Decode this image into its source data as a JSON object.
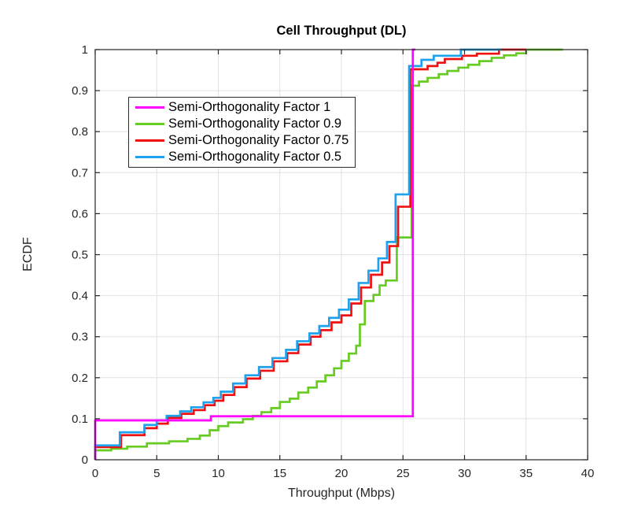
{
  "chart_data": {
    "type": "line",
    "subtype": "ecdf-step",
    "title": "Cell Throughput (DL)",
    "xlabel": "Throughput (Mbps)",
    "ylabel": "ECDF",
    "xlim": [
      0,
      40
    ],
    "ylim": [
      0,
      1
    ],
    "xticks": [
      0,
      5,
      10,
      15,
      20,
      25,
      30,
      35,
      40
    ],
    "xtick_labels": [
      "0",
      "5",
      "10",
      "15",
      "20",
      "25",
      "30",
      "35",
      "40"
    ],
    "yticks": [
      0,
      0.1,
      0.2,
      0.3,
      0.4,
      0.5,
      0.6,
      0.7,
      0.8,
      0.9,
      1
    ],
    "ytick_labels": [
      "0",
      "0.1",
      "0.2",
      "0.3",
      "0.4",
      "0.5",
      "0.6",
      "0.7",
      "0.8",
      "0.9",
      "1"
    ],
    "grid": true,
    "legend": {
      "position": "upper-left-inside",
      "border_color": "#2b2b2b",
      "background": "#ffffff"
    },
    "draw_order": [
      1,
      2,
      3,
      0
    ],
    "series": [
      {
        "name": "Semi-Orthogonality Factor 1",
        "color": "#FF00FF",
        "line_width": 2.7,
        "end_x": 26.0,
        "points": [
          [
            0,
            0.096
          ],
          [
            9.4,
            0.106
          ],
          [
            25.8,
            1.0
          ]
        ]
      },
      {
        "name": "Semi-Orthogonality Factor 0.9",
        "color": "#66CC22",
        "line_width": 2.7,
        "end_x": 38.0,
        "points": [
          [
            0,
            0.023
          ],
          [
            1.3,
            0.027
          ],
          [
            2.6,
            0.032
          ],
          [
            4.2,
            0.04
          ],
          [
            6.0,
            0.045
          ],
          [
            7.5,
            0.051
          ],
          [
            8.5,
            0.059
          ],
          [
            9.3,
            0.072
          ],
          [
            10.0,
            0.082
          ],
          [
            10.8,
            0.091
          ],
          [
            12.0,
            0.099
          ],
          [
            12.8,
            0.107
          ],
          [
            13.5,
            0.116
          ],
          [
            14.3,
            0.126
          ],
          [
            15.0,
            0.141
          ],
          [
            15.8,
            0.149
          ],
          [
            16.5,
            0.164
          ],
          [
            17.3,
            0.176
          ],
          [
            18.0,
            0.191
          ],
          [
            18.7,
            0.206
          ],
          [
            19.4,
            0.223
          ],
          [
            20.0,
            0.241
          ],
          [
            20.6,
            0.259
          ],
          [
            21.2,
            0.278
          ],
          [
            21.5,
            0.33
          ],
          [
            21.9,
            0.387
          ],
          [
            22.6,
            0.402
          ],
          [
            23.1,
            0.425
          ],
          [
            23.6,
            0.437
          ],
          [
            24.5,
            0.542
          ],
          [
            25.7,
            0.912
          ],
          [
            26.3,
            0.922
          ],
          [
            27.0,
            0.931
          ],
          [
            27.9,
            0.94
          ],
          [
            28.6,
            0.948
          ],
          [
            29.5,
            0.956
          ],
          [
            30.3,
            0.963
          ],
          [
            31.2,
            0.972
          ],
          [
            32.2,
            0.98
          ],
          [
            33.2,
            0.986
          ],
          [
            34.2,
            0.991
          ],
          [
            35.0,
            1.0
          ]
        ]
      },
      {
        "name": "Semi-Orthogonality Factor 0.75",
        "color": "#EE1111",
        "line_width": 2.7,
        "end_x": 35.0,
        "points": [
          [
            0,
            0.031
          ],
          [
            2.1,
            0.06
          ],
          [
            4.0,
            0.077
          ],
          [
            5.0,
            0.088
          ],
          [
            5.9,
            0.102
          ],
          [
            7.0,
            0.112
          ],
          [
            8.0,
            0.121
          ],
          [
            8.9,
            0.133
          ],
          [
            9.7,
            0.144
          ],
          [
            10.4,
            0.158
          ],
          [
            11.3,
            0.177
          ],
          [
            12.3,
            0.198
          ],
          [
            13.4,
            0.217
          ],
          [
            14.5,
            0.24
          ],
          [
            15.6,
            0.26
          ],
          [
            16.5,
            0.281
          ],
          [
            17.5,
            0.3
          ],
          [
            18.3,
            0.316
          ],
          [
            19.2,
            0.335
          ],
          [
            20.0,
            0.352
          ],
          [
            20.8,
            0.381
          ],
          [
            21.6,
            0.42
          ],
          [
            22.4,
            0.451
          ],
          [
            23.3,
            0.481
          ],
          [
            23.9,
            0.521
          ],
          [
            24.6,
            0.617
          ],
          [
            25.6,
            0.952
          ],
          [
            27.0,
            0.96
          ],
          [
            27.8,
            0.968
          ],
          [
            28.4,
            0.977
          ],
          [
            29.8,
            0.985
          ],
          [
            31.0,
            0.99
          ],
          [
            32.8,
            1.0
          ]
        ]
      },
      {
        "name": "Semi-Orthogonality Factor 0.5",
        "color": "#1FA2ED",
        "line_width": 2.7,
        "end_x": 33.0,
        "points": [
          [
            0,
            0.035
          ],
          [
            2.0,
            0.067
          ],
          [
            4.0,
            0.085
          ],
          [
            5.0,
            0.096
          ],
          [
            5.8,
            0.107
          ],
          [
            6.9,
            0.118
          ],
          [
            7.8,
            0.128
          ],
          [
            8.8,
            0.14
          ],
          [
            9.6,
            0.151
          ],
          [
            10.2,
            0.166
          ],
          [
            11.2,
            0.186
          ],
          [
            12.2,
            0.206
          ],
          [
            13.3,
            0.226
          ],
          [
            14.4,
            0.248
          ],
          [
            15.5,
            0.268
          ],
          [
            16.4,
            0.289
          ],
          [
            17.4,
            0.308
          ],
          [
            18.2,
            0.326
          ],
          [
            19.0,
            0.346
          ],
          [
            19.8,
            0.366
          ],
          [
            20.6,
            0.391
          ],
          [
            21.4,
            0.431
          ],
          [
            22.2,
            0.461
          ],
          [
            23.0,
            0.491
          ],
          [
            23.7,
            0.531
          ],
          [
            24.4,
            0.647
          ],
          [
            25.5,
            0.96
          ],
          [
            26.5,
            0.975
          ],
          [
            27.5,
            0.985
          ],
          [
            29.7,
            1.0
          ]
        ]
      }
    ]
  }
}
